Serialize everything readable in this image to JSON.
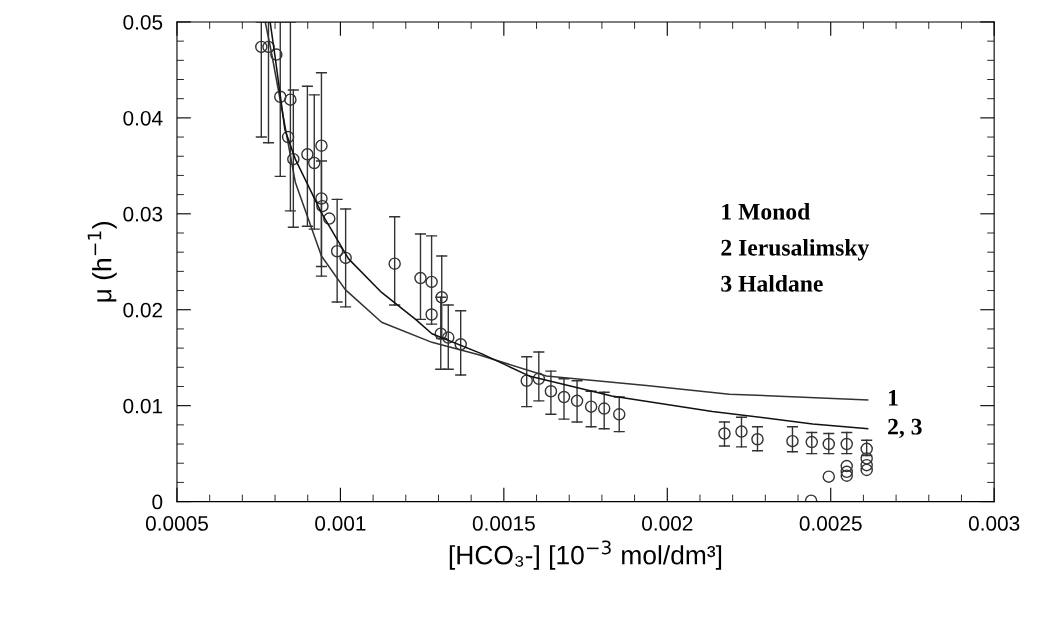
{
  "chart_data": {
    "type": "scatter",
    "xlabel": "[HCO₃-] [10$^{−3}$ mol/dm³]",
    "ylabel": "μ (h$^{−1}$)",
    "xlim": [
      0.0005,
      0.003
    ],
    "xticks": [
      0.0005,
      0.001,
      0.0015,
      0.002,
      0.0025,
      0.003
    ],
    "ylim": [
      0,
      0.05
    ],
    "yticks": [
      0,
      0.01,
      0.02,
      0.03,
      0.04,
      0.05
    ],
    "grid": false,
    "legend": false,
    "marker": "circle",
    "annotations": [
      "1 Monod",
      "2 Ierusalimsky",
      "3 Haldane"
    ],
    "series": [
      {
        "color": "#333333",
        "x": [
          0.000758,
          0.00078,
          0.000804,
          0.000816,
          0.000847,
          0.00084,
          0.000856,
          0.000899,
          0.00092,
          0.000942,
          0.000942,
          0.000945,
          0.000966,
          0.00099,
          0.001016,
          0.001166,
          0.001245,
          0.001279,
          0.001279,
          0.00131,
          0.001307,
          0.00133,
          0.001368,
          0.00157,
          0.001607,
          0.001644,
          0.001684,
          0.001724,
          0.001767,
          0.001807,
          0.001853,
          0.002175,
          0.002227,
          0.002276,
          0.002383,
          0.002442,
          0.002494,
          0.002549,
          0.00261,
          0.002494,
          0.002549,
          0.002549,
          0.002549,
          0.00261,
          0.00261,
          0.00261,
          0.00244
        ],
        "values": [
          0.0474,
          0.0474,
          0.0466,
          0.0422,
          0.0419,
          0.038,
          0.0357,
          0.0362,
          0.0353,
          0.0371,
          0.0316,
          0.0308,
          0.0295,
          0.0261,
          0.0254,
          0.0248,
          0.0233,
          0.0229,
          0.0195,
          0.0213,
          0.0175,
          0.0171,
          0.0164,
          0.0126,
          0.0128,
          0.0115,
          0.0109,
          0.0105,
          0.0099,
          0.0097,
          0.0091,
          0.0071,
          0.0073,
          0.0065,
          0.0063,
          0.0062,
          0.006,
          0.006,
          0.0055,
          0.0026,
          0.0037,
          0.0031,
          0.0027,
          0.0045,
          0.0038,
          0.0033,
          0.0001
        ],
        "errors": [
          [
            0.038,
            0.05
          ],
          [
            0.0374,
            0.05
          ],
          null,
          [
            0.0339,
            0.05
          ],
          [
            0.0303,
            0.05
          ],
          null,
          [
            0.0286,
            0.0429
          ],
          [
            0.0287,
            0.0433
          ],
          [
            0.0284,
            0.0424
          ],
          [
            0.0235,
            0.0447
          ],
          [
            0.0245,
            0.0355
          ],
          null,
          null,
          [
            0.0208,
            0.0315
          ],
          [
            0.0203,
            0.0305
          ],
          [
            0.0205,
            0.0297
          ],
          [
            0.019,
            0.0279
          ],
          [
            0.0185,
            0.0277
          ],
          null,
          [
            0.017,
            0.0256
          ],
          [
            0.0138,
            0.0213
          ],
          [
            0.0138,
            0.0205
          ],
          [
            0.0132,
            0.0199
          ],
          [
            0.0099,
            0.0151
          ],
          [
            0.0105,
            0.0156
          ],
          [
            0.0091,
            0.0136
          ],
          [
            0.0086,
            0.0128
          ],
          [
            0.0083,
            0.0126
          ],
          [
            0.0078,
            0.0115
          ],
          [
            0.0076,
            0.0114
          ],
          [
            0.0073,
            0.0109
          ],
          [
            0.0058,
            0.0083
          ],
          [
            0.0057,
            0.0088
          ],
          [
            0.0053,
            0.0078
          ],
          [
            0.0052,
            0.0078
          ],
          [
            0.005,
            0.0072
          ],
          [
            0.005,
            0.0071
          ],
          [
            0.005,
            0.0072
          ],
          [
            0.0048,
            0.0064
          ],
          null,
          null,
          null,
          null,
          null,
          null,
          null,
          null
        ]
      },
      {
        "type": "line",
        "marker": "none",
        "name": "1",
        "color": "#333333",
        "x": [
          0.00077,
          0.000788,
          0.000862,
          0.000942,
          0.001015,
          0.001126,
          0.00128,
          0.001423,
          0.00163,
          0.001936,
          0.00219,
          0.002613
        ],
        "values": [
          0.05,
          0.047,
          0.0333,
          0.0256,
          0.0221,
          0.0187,
          0.0166,
          0.0153,
          0.0131,
          0.0121,
          0.0112,
          0.0106
        ]
      },
      {
        "type": "line",
        "marker": "none",
        "name": "2, 3",
        "color": "#111111",
        "x": [
          0.000785,
          0.0008,
          0.00083,
          0.000862,
          0.000942,
          0.001025,
          0.001126,
          0.00123,
          0.00128,
          0.001433,
          0.001577,
          0.00183,
          0.002138,
          0.002445,
          0.002613
        ],
        "values": [
          0.05,
          0.0464,
          0.0388,
          0.0357,
          0.0301,
          0.0253,
          0.0218,
          0.019,
          0.0175,
          0.0154,
          0.0131,
          0.011,
          0.0094,
          0.0081,
          0.0076
        ]
      }
    ]
  }
}
